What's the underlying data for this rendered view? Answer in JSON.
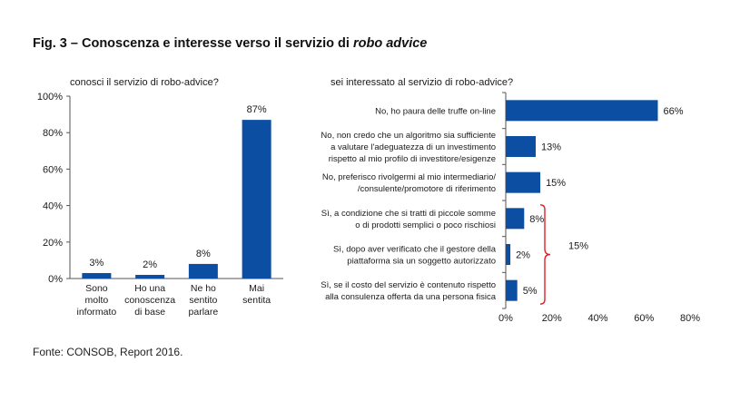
{
  "figure": {
    "title_prefix": "Fig. 3 – Conoscenza e interesse verso il servizio di ",
    "title_emph": "robo advice",
    "source": "Fonte: CONSOB, Report 2016."
  },
  "colors": {
    "bar": "#0b4ea2",
    "bracket": "#e0202a",
    "axis": "#555555"
  },
  "chart_data": [
    {
      "type": "bar",
      "title": "conosci il servizio di robo-advice?",
      "categories": [
        [
          "Sono",
          "molto",
          "informato"
        ],
        [
          "Ho una",
          "conoscenza",
          "di base"
        ],
        [
          "Ne ho",
          "sentito",
          "parlare"
        ],
        [
          "Mai",
          "sentita"
        ]
      ],
      "values": [
        3,
        2,
        8,
        87
      ],
      "value_labels": [
        "3%",
        "2%",
        "8%",
        "87%"
      ],
      "ylim": [
        0,
        100
      ],
      "yticks": [
        0,
        20,
        40,
        60,
        80,
        100
      ],
      "ytick_labels": [
        "0%",
        "20%",
        "40%",
        "60%",
        "80%",
        "100%"
      ],
      "xlabel": "",
      "ylabel": ""
    },
    {
      "type": "bar",
      "orientation": "horizontal",
      "title": "sei interessato al servizio di robo-advice?",
      "categories": [
        [
          "No, ho paura delle truffe on-line"
        ],
        [
          "No, non credo che un algoritmo sia sufficiente",
          "a valutare l'adeguatezza di un investimento",
          "rispetto al mio profilo di investitore/esigenze"
        ],
        [
          "No, preferisco rivolgermi al mio intermediario/",
          "/consulente/promotore di riferimento"
        ],
        [
          "Sì, a condizione che si tratti di piccole somme",
          "o di prodotti semplici o poco rischiosi"
        ],
        [
          "Sì, dopo aver verificato che il gestore della",
          "piattaforma sia un soggetto autorizzato"
        ],
        [
          "Sì, se il costo del servizio è contenuto rispetto",
          "alla consulenza offerta da una persona fisica"
        ]
      ],
      "values": [
        66,
        13,
        15,
        8,
        2,
        5
      ],
      "value_labels": [
        "66%",
        "13%",
        "15%",
        "8%",
        "2%",
        "5%"
      ],
      "xlim": [
        0,
        80
      ],
      "xticks": [
        0,
        20,
        40,
        60,
        80
      ],
      "xtick_labels": [
        "0%",
        "20%",
        "40%",
        "60%",
        "80%"
      ],
      "annotations": [
        {
          "label": "15%",
          "spans_categories": [
            3,
            5
          ]
        }
      ],
      "xlabel": "",
      "ylabel": ""
    }
  ]
}
